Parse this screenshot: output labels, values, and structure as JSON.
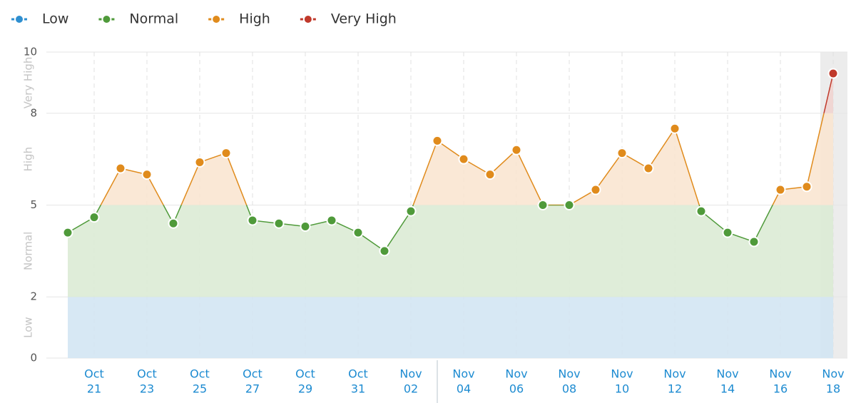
{
  "chart_data": {
    "type": "zone-line",
    "categories": [
      null,
      [
        "Oct",
        "21"
      ],
      null,
      [
        "Oct",
        "23"
      ],
      null,
      [
        "Oct",
        "25"
      ],
      null,
      [
        "Oct",
        "27"
      ],
      null,
      [
        "Oct",
        "29"
      ],
      null,
      [
        "Oct",
        "31"
      ],
      null,
      [
        "Nov",
        "02"
      ],
      null,
      [
        "Nov",
        "04"
      ],
      null,
      [
        "Nov",
        "06"
      ],
      null,
      [
        "Nov",
        "08"
      ],
      null,
      [
        "Nov",
        "10"
      ],
      null,
      [
        "Nov",
        "12"
      ],
      null,
      [
        "Nov",
        "14"
      ],
      null,
      [
        "Nov",
        "16"
      ],
      null,
      [
        "Nov",
        "18"
      ]
    ],
    "values": [
      4.1,
      4.6,
      6.2,
      6.0,
      4.4,
      6.4,
      6.7,
      4.5,
      4.4,
      4.3,
      4.5,
      4.1,
      3.5,
      4.8,
      7.1,
      6.5,
      6.0,
      6.8,
      5.0,
      5.0,
      5.5,
      6.7,
      6.2,
      7.5,
      4.8,
      4.1,
      3.8,
      5.5,
      5.6,
      9.3
    ],
    "zones": [
      {
        "name": "Low",
        "color": "#2f8fd0",
        "fill": "#d3e5f3",
        "range": [
          0,
          2
        ]
      },
      {
        "name": "Normal",
        "color": "#4f9a3a",
        "fill": "#dcebd5",
        "range": [
          2,
          5
        ]
      },
      {
        "name": "High",
        "color": "#e08b1c",
        "fill": "#f9e5d1",
        "range": [
          5,
          8
        ]
      },
      {
        "name": "Very High",
        "color": "#c0392b",
        "fill": "#f1d4d0",
        "range": [
          8,
          10
        ]
      }
    ],
    "ylim": [
      0,
      10
    ],
    "yticks": [
      0,
      2,
      5,
      8,
      10
    ],
    "grid": true
  }
}
